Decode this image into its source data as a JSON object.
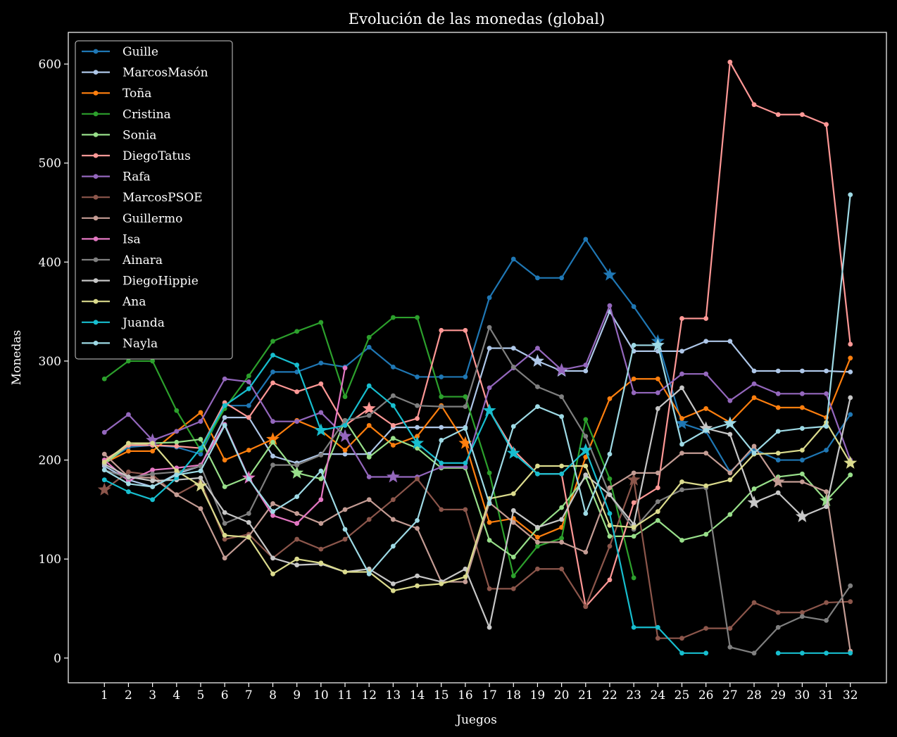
{
  "chart_data": {
    "type": "line",
    "title": "Evolución de las monedas (global)",
    "xlabel": "Juegos",
    "ylabel": "Monedas",
    "x": [
      1,
      2,
      3,
      4,
      5,
      6,
      7,
      8,
      9,
      10,
      11,
      12,
      13,
      14,
      15,
      16,
      17,
      18,
      19,
      20,
      21,
      22,
      23,
      24,
      25,
      26,
      27,
      28,
      29,
      30,
      31,
      32
    ],
    "xlim": [
      -0.5,
      33.5
    ],
    "ylim": [
      -25,
      632
    ],
    "yticks": [
      0,
      100,
      200,
      300,
      400,
      500,
      600
    ],
    "grid": false,
    "legend_position": "upper-left",
    "series": [
      {
        "name": "Guille",
        "color": "#1f77b4",
        "values": [
          197,
          213,
          215,
          213,
          206,
          255,
          255,
          289,
          289,
          298,
          294,
          314,
          294,
          284,
          284,
          284,
          364,
          403,
          384,
          384,
          423,
          387,
          355,
          320,
          237,
          229,
          188,
          211,
          200,
          200,
          210,
          246
        ],
        "stars": [
          22,
          24,
          25
        ]
      },
      {
        "name": "MarcosMasón",
        "color": "#aec7e8",
        "values": [
          194,
          180,
          173,
          186,
          194,
          243,
          243,
          204,
          197,
          206,
          206,
          206,
          233,
          233,
          233,
          233,
          313,
          313,
          300,
          290,
          290,
          350,
          310,
          310,
          310,
          320,
          320,
          290,
          290,
          290,
          290,
          289
        ],
        "stars": [
          19,
          20
        ]
      },
      {
        "name": "Toña",
        "color": "#ff7f0e",
        "values": [
          197,
          209,
          209,
          229,
          248,
          200,
          210,
          221,
          240,
          230,
          210,
          235,
          215,
          224,
          255,
          217,
          137,
          141,
          122,
          132,
          203,
          262,
          282,
          282,
          242,
          252,
          238,
          263,
          253,
          253,
          243,
          303
        ],
        "stars": [
          8,
          16
        ]
      },
      {
        "name": "Cristina",
        "color": "#2ca02c",
        "values": [
          282,
          300,
          300,
          250,
          210,
          252,
          285,
          320,
          330,
          339,
          264,
          324,
          344,
          344,
          264,
          264,
          187,
          83,
          113,
          121,
          241,
          181,
          81,
          null,
          null,
          null,
          null,
          null,
          null,
          null,
          null,
          null
        ],
        "stars": []
      },
      {
        "name": "Sonia",
        "color": "#98df8a",
        "values": [
          196,
          215,
          217,
          218,
          221,
          173,
          183,
          218,
          187,
          181,
          240,
          203,
          222,
          212,
          192,
          192,
          119,
          102,
          131,
          152,
          183,
          123,
          123,
          139,
          119,
          125,
          145,
          171,
          183,
          186,
          159,
          185
        ],
        "stars": [
          9,
          31
        ]
      },
      {
        "name": "DiegoTatus",
        "color": "#ff9896",
        "values": [
          200,
          215,
          215,
          214,
          212,
          258,
          243,
          278,
          269,
          277,
          235,
          252,
          235,
          242,
          331,
          331,
          250,
          210,
          186,
          186,
          52,
          79,
          157,
          172,
          343,
          343,
          602,
          559,
          549,
          549,
          539,
          317
        ],
        "stars": [
          12
        ]
      },
      {
        "name": "Rafa",
        "color": "#9467bd",
        "values": [
          228,
          246,
          220,
          229,
          239,
          282,
          279,
          239,
          239,
          248,
          224,
          183,
          183,
          183,
          193,
          193,
          273,
          293,
          313,
          291,
          296,
          356,
          268,
          268,
          287,
          287,
          260,
          277,
          267,
          267,
          267,
          200
        ],
        "stars": [
          3,
          11,
          13,
          20
        ]
      },
      {
        "name": "MarcosPSOE",
        "color": "#8c564b",
        "values": [
          170,
          188,
          185,
          165,
          178,
          120,
          125,
          101,
          120,
          110,
          120,
          140,
          160,
          181,
          150,
          150,
          70,
          70,
          90,
          90,
          52,
          113,
          180,
          20,
          20,
          30,
          30,
          56,
          46,
          46,
          56,
          57
        ],
        "stars": [
          1,
          23
        ]
      },
      {
        "name": "Guillermo",
        "color": "#c49c94",
        "values": [
          206,
          183,
          182,
          165,
          151,
          101,
          123,
          156,
          146,
          136,
          150,
          160,
          140,
          131,
          77,
          77,
          157,
          137,
          117,
          117,
          107,
          172,
          187,
          187,
          207,
          207,
          187,
          214,
          178,
          178,
          168,
          7
        ],
        "stars": [
          29
        ]
      },
      {
        "name": "Isa",
        "color": "#e377c2",
        "values": [
          200,
          179,
          190,
          192,
          195,
          236,
          182,
          144,
          136,
          160,
          293,
          null,
          null,
          null,
          null,
          null,
          null,
          null,
          null,
          null,
          null,
          null,
          null,
          null,
          null,
          null,
          null,
          null,
          null,
          null,
          null,
          null
        ],
        "stars": [
          7
        ]
      },
      {
        "name": "Ainara",
        "color": "#7f7f7f",
        "values": [
          190,
          182,
          186,
          188,
          194,
          136,
          146,
          195,
          195,
          205,
          240,
          245,
          265,
          255,
          254,
          254,
          334,
          294,
          274,
          264,
          224,
          165,
          130,
          158,
          170,
          172,
          11,
          5,
          31,
          42,
          38,
          73
        ],
        "stars": []
      },
      {
        "name": "DiegoHippie",
        "color": "#c7c7c7",
        "values": [
          196,
          183,
          179,
          180,
          182,
          147,
          137,
          101,
          94,
          95,
          87,
          90,
          75,
          83,
          77,
          90,
          31,
          149,
          132,
          140,
          185,
          165,
          135,
          252,
          273,
          232,
          226,
          157,
          167,
          143,
          153,
          263
        ],
        "stars": [
          26,
          28,
          30
        ]
      },
      {
        "name": "Ana",
        "color": "#dbdb8d",
        "values": [
          198,
          217,
          217,
          189,
          174,
          124,
          122,
          85,
          100,
          96,
          87,
          87,
          68,
          73,
          75,
          82,
          161,
          166,
          194,
          194,
          194,
          134,
          132,
          148,
          178,
          174,
          180,
          206,
          207,
          210,
          238,
          197
        ],
        "stars": [
          5,
          32
        ]
      },
      {
        "name": "Juanda",
        "color": "#17becf",
        "values": [
          180,
          168,
          160,
          182,
          212,
          255,
          272,
          306,
          296,
          230,
          235,
          275,
          255,
          217,
          197,
          197,
          250,
          207,
          186,
          186,
          210,
          146,
          31,
          31,
          5,
          5,
          null,
          null,
          5,
          5,
          5,
          5
        ],
        "stars": [
          10,
          14,
          17,
          18,
          21
        ]
      },
      {
        "name": "Nayla",
        "color": "#9edae5",
        "values": [
          190,
          176,
          173,
          185,
          189,
          235,
          181,
          148,
          163,
          189,
          130,
          85,
          113,
          139,
          220,
          232,
          156,
          234,
          254,
          244,
          146,
          206,
          316,
          316,
          216,
          230,
          237,
          207,
          229,
          232,
          234,
          468
        ],
        "stars": [
          24,
          27
        ]
      }
    ]
  }
}
